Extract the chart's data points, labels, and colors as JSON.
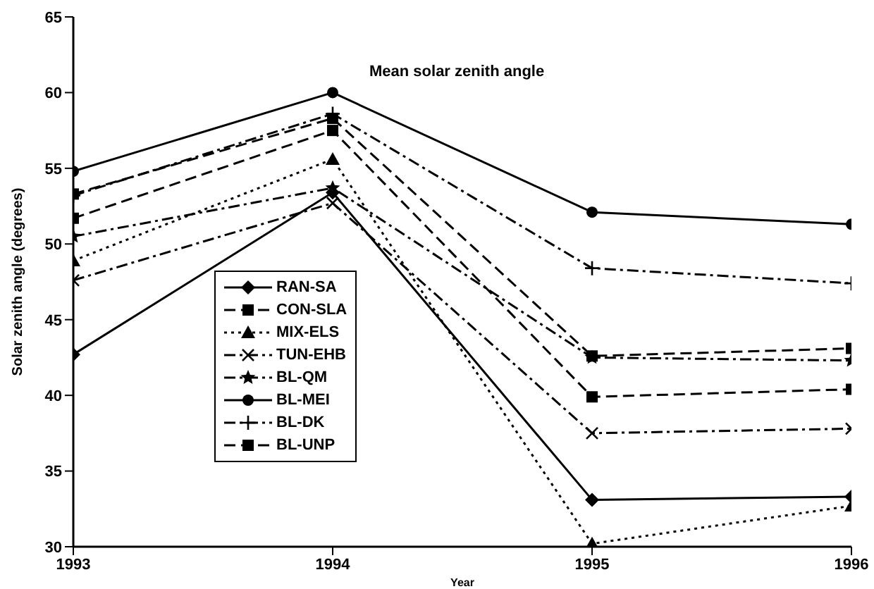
{
  "chart_data": {
    "type": "line",
    "title": "Mean solar zenith angle",
    "xlabel": "Year",
    "ylabel": "Solar zenith angle (degrees)",
    "x": [
      1993,
      1994,
      1995,
      1996
    ],
    "xlim": [
      1993,
      1996
    ],
    "xticks": [
      1993,
      1994,
      1995,
      1996
    ],
    "ylim": [
      30,
      65
    ],
    "yticks": [
      30,
      35,
      40,
      45,
      50,
      55,
      60,
      65
    ],
    "grid": false,
    "legend": "bottom left",
    "series": [
      {
        "name": "RAN-SA",
        "color": "#000000",
        "marker": "diamond",
        "line_style": "solid",
        "values": [
          42.7,
          53.4,
          33.1,
          33.3
        ]
      },
      {
        "name": "CON-SLA",
        "color": "#000000",
        "marker": "square",
        "line_style": "dashed",
        "values": [
          51.7,
          57.5,
          39.9,
          40.4
        ]
      },
      {
        "name": "MIX-ELS",
        "color": "#000000",
        "marker": "triangle",
        "line_style": "dotted",
        "values": [
          48.9,
          55.6,
          30.2,
          32.7
        ]
      },
      {
        "name": "TUN-EHB",
        "color": "#000000",
        "marker": "cross",
        "line_style": "dashdot",
        "values": [
          47.6,
          52.7,
          37.5,
          37.8
        ]
      },
      {
        "name": "BL-QM",
        "color": "#000000",
        "marker": "star",
        "line_style": "dashdot",
        "values": [
          50.5,
          53.7,
          42.5,
          42.3
        ]
      },
      {
        "name": "BL-MEI",
        "color": "#000000",
        "marker": "circle",
        "line_style": "solid",
        "values": [
          54.8,
          60,
          52.1,
          51.3
        ]
      },
      {
        "name": "BL-DK",
        "color": "#000000",
        "marker": "plus",
        "line_style": "dashdot",
        "values": [
          53.2,
          58.6,
          48.4,
          47.4
        ]
      },
      {
        "name": "BL-UNP",
        "color": "#000000",
        "marker": "square",
        "line_style": "dashed",
        "values": [
          53.3,
          58.3,
          42.6,
          43.1
        ]
      }
    ]
  }
}
